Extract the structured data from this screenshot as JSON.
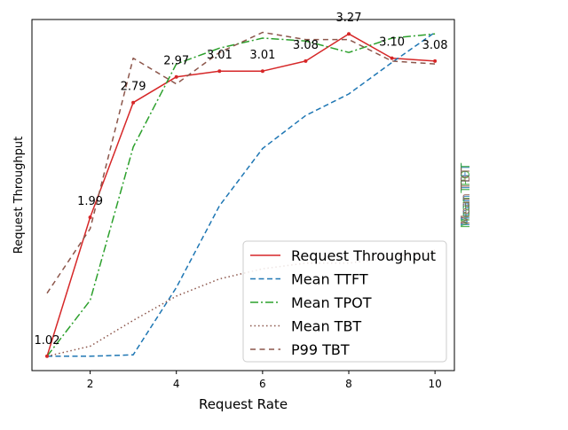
{
  "chart_data": {
    "type": "line",
    "xlabel": "Request Rate",
    "ylabel": "Request Throughput",
    "ylabel_color": "#d62728",
    "right_axis_labels": [
      {
        "text": "Mean TTFT",
        "color": "#1f77b4"
      },
      {
        "text": "Mean TPOT",
        "color": "#2ca02c"
      },
      {
        "text": "Mean TBT",
        "color": "#8c564b"
      }
    ],
    "xlim": [
      0.65,
      10.45
    ],
    "ylim": [
      0.92,
      3.37
    ],
    "xticks": [
      2,
      4,
      6,
      8,
      10
    ],
    "grid": false,
    "legend_position": "lower-right",
    "x": [
      1,
      2,
      3,
      4,
      5,
      6,
      7,
      8,
      9,
      10
    ],
    "series": [
      {
        "name": "Request Throughput",
        "color": "#d62728",
        "dash": "solid",
        "markers": true,
        "values": [
          1.02,
          1.99,
          2.79,
          2.97,
          3.01,
          3.01,
          3.08,
          3.27,
          3.1,
          3.08
        ],
        "data_labels": [
          "1.02",
          "1.99",
          "2.79",
          "2.97",
          "3.01",
          "3.01",
          "3.08",
          "3.27",
          "3.10",
          "3.08"
        ]
      },
      {
        "name": "Mean TTFT",
        "color": "#1f77b4",
        "dash": "dashed",
        "values": [
          1.02,
          1.02,
          1.03,
          1.5,
          2.07,
          2.47,
          2.7,
          2.85,
          3.07,
          3.28
        ]
      },
      {
        "name": "Mean TPOT",
        "color": "#2ca02c",
        "dash": "dashdot",
        "values": [
          1.02,
          1.41,
          2.48,
          3.06,
          3.17,
          3.24,
          3.22,
          3.14,
          3.24,
          3.27
        ]
      },
      {
        "name": "Mean TBT",
        "color": "#8c564b",
        "dash": "dotted",
        "values": [
          1.02,
          1.09,
          1.27,
          1.44,
          1.56,
          1.63,
          1.67,
          1.67,
          1.71,
          1.76
        ]
      },
      {
        "name": "P99 TBT",
        "color": "#8c564b",
        "dash": "loosedash",
        "values": [
          1.46,
          1.91,
          3.1,
          2.92,
          3.14,
          3.28,
          3.23,
          3.23,
          3.08,
          3.06
        ]
      }
    ]
  }
}
